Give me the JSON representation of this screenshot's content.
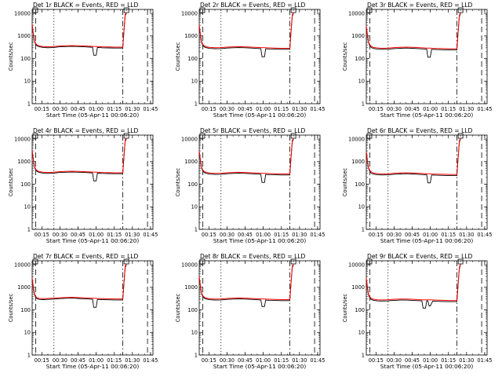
{
  "figure": {
    "xlabel": "Start Time (05-Apr-11 00:06:20)",
    "ylabel": "Counts/sec"
  },
  "chart_data": {
    "type": "line",
    "y_scale": "log",
    "ylim": [
      1,
      15000
    ],
    "xlim": [
      "00:07:00",
      "01:47:00"
    ],
    "x_ticks": [
      "00:15",
      "00:30",
      "00:45",
      "01:00",
      "01:15",
      "01:30",
      "01:45"
    ],
    "y_ticks": [
      "1",
      "10",
      "100",
      "1000",
      "10000"
    ],
    "series_colors": {
      "events": "#000000",
      "lld": "#ff0000"
    },
    "panels": [
      {
        "title": "Det 1r BLACK = Events, RED = LLD",
        "x": [
          "00:07:00",
          "00:08:00",
          "00:09:00",
          "00:10:00",
          "00:11:00",
          "00:13:00",
          "00:16:00",
          "00:20:00",
          "00:25:00",
          "00:30:00",
          "00:35:00",
          "00:40:00",
          "00:45:00",
          "00:50:00",
          "00:55:00",
          "00:57:00",
          "00:58:00",
          "01:00:00",
          "01:01:00",
          "01:05:00",
          "01:10:00",
          "01:15:00",
          "01:20:00",
          "01:22:00",
          "01:23:00",
          "01:24:00",
          "01:25:00"
        ],
        "events": [
          3000,
          1200,
          550,
          420,
          370,
          330,
          310,
          300,
          310,
          330,
          340,
          345,
          340,
          330,
          320,
          315,
          140,
          140,
          310,
          300,
          295,
          290,
          290,
          290,
          1500,
          8000,
          10000
        ],
        "lld": [
          3200,
          1300,
          600,
          460,
          400,
          360,
          340,
          330,
          340,
          360,
          370,
          375,
          370,
          360,
          350,
          345,
          345,
          345,
          340,
          330,
          325,
          320,
          320,
          320,
          1700,
          9000,
          11000
        ]
      },
      {
        "title": "Det 2r BLACK = Events, RED = LLD",
        "x": [
          "00:07:00",
          "00:08:00",
          "00:09:00",
          "00:10:00",
          "00:11:00",
          "00:13:00",
          "00:16:00",
          "00:20:00",
          "00:25:00",
          "00:30:00",
          "00:35:00",
          "00:40:00",
          "00:45:00",
          "00:50:00",
          "00:55:00",
          "00:58:00",
          "00:59:00",
          "01:01:00",
          "01:02:00",
          "01:05:00",
          "01:10:00",
          "01:15:00",
          "01:20:00",
          "01:22:00",
          "01:23:00",
          "01:24:00",
          "01:25:00"
        ],
        "events": [
          2800,
          1100,
          500,
          380,
          330,
          300,
          280,
          270,
          275,
          290,
          300,
          305,
          300,
          290,
          280,
          275,
          120,
          120,
          270,
          265,
          260,
          255,
          255,
          255,
          1400,
          7500,
          10000
        ],
        "lld": [
          3000,
          1200,
          560,
          420,
          370,
          330,
          310,
          300,
          305,
          320,
          330,
          335,
          330,
          320,
          310,
          305,
          305,
          305,
          300,
          295,
          290,
          285,
          285,
          285,
          1600,
          8500,
          11000
        ]
      },
      {
        "title": "Det 3r BLACK = Events, RED = LLD",
        "x": [
          "00:07:00",
          "00:08:00",
          "00:09:00",
          "00:10:00",
          "00:11:00",
          "00:13:00",
          "00:16:00",
          "00:20:00",
          "00:25:00",
          "00:30:00",
          "00:35:00",
          "00:40:00",
          "00:45:00",
          "00:50:00",
          "00:55:00",
          "00:57:00",
          "00:58:00",
          "01:00:00",
          "01:01:00",
          "01:05:00",
          "01:10:00",
          "01:15:00",
          "01:20:00",
          "01:22:00",
          "01:23:00",
          "01:24:00",
          "01:25:00"
        ],
        "events": [
          2600,
          1000,
          480,
          360,
          310,
          280,
          265,
          255,
          260,
          275,
          285,
          290,
          285,
          275,
          265,
          260,
          115,
          115,
          255,
          250,
          245,
          240,
          240,
          240,
          1300,
          7000,
          10000
        ],
        "lld": [
          2800,
          1100,
          530,
          400,
          350,
          310,
          295,
          285,
          290,
          305,
          315,
          320,
          315,
          305,
          295,
          290,
          290,
          290,
          285,
          280,
          275,
          270,
          270,
          270,
          1500,
          8000,
          11000
        ]
      },
      {
        "title": "Det 4r BLACK = Events, RED = LLD",
        "x": [
          "00:07:00",
          "00:08:00",
          "00:09:00",
          "00:10:00",
          "00:11:00",
          "00:13:00",
          "00:16:00",
          "00:20:00",
          "00:25:00",
          "00:30:00",
          "00:35:00",
          "00:40:00",
          "00:45:00",
          "00:50:00",
          "00:55:00",
          "00:57:00",
          "00:58:00",
          "01:00:00",
          "01:01:00",
          "01:05:00",
          "01:10:00",
          "01:15:00",
          "01:20:00",
          "01:22:00",
          "01:23:00",
          "01:24:00",
          "01:25:00"
        ],
        "events": [
          3000,
          1200,
          550,
          420,
          370,
          330,
          310,
          300,
          310,
          330,
          340,
          345,
          340,
          330,
          320,
          315,
          140,
          140,
          310,
          300,
          295,
          290,
          290,
          290,
          1500,
          8000,
          10000
        ],
        "lld": [
          3200,
          1300,
          600,
          460,
          400,
          360,
          340,
          330,
          340,
          360,
          370,
          375,
          370,
          360,
          350,
          345,
          345,
          345,
          340,
          330,
          325,
          320,
          320,
          320,
          1700,
          9000,
          11000
        ]
      },
      {
        "title": "Det 5r BLACK = Events, RED = LLD",
        "x": [
          "00:07:00",
          "00:08:00",
          "00:09:00",
          "00:10:00",
          "00:11:00",
          "00:13:00",
          "00:16:00",
          "00:20:00",
          "00:25:00",
          "00:30:00",
          "00:35:00",
          "00:40:00",
          "00:45:00",
          "00:50:00",
          "00:55:00",
          "00:58:00",
          "00:59:00",
          "01:01:00",
          "01:02:00",
          "01:05:00",
          "01:10:00",
          "01:15:00",
          "01:20:00",
          "01:22:00",
          "01:23:00",
          "01:24:00",
          "01:25:00"
        ],
        "events": [
          2800,
          1100,
          500,
          380,
          330,
          300,
          280,
          270,
          275,
          290,
          300,
          305,
          300,
          290,
          280,
          275,
          120,
          120,
          270,
          265,
          260,
          255,
          255,
          255,
          1400,
          7500,
          10000
        ],
        "lld": [
          3000,
          1200,
          560,
          420,
          370,
          330,
          310,
          300,
          305,
          320,
          330,
          335,
          330,
          320,
          310,
          305,
          305,
          305,
          300,
          295,
          290,
          285,
          285,
          285,
          1600,
          8500,
          11000
        ]
      },
      {
        "title": "Det 6r BLACK = Events, RED = LLD",
        "x": [
          "00:07:00",
          "00:08:00",
          "00:09:00",
          "00:10:00",
          "00:11:00",
          "00:13:00",
          "00:16:00",
          "00:20:00",
          "00:25:00",
          "00:30:00",
          "00:35:00",
          "00:40:00",
          "00:45:00",
          "00:50:00",
          "00:55:00",
          "00:57:00",
          "00:58:00",
          "01:00:00",
          "01:01:00",
          "01:05:00",
          "01:10:00",
          "01:15:00",
          "01:20:00",
          "01:22:00",
          "01:23:00",
          "01:24:00",
          "01:25:00"
        ],
        "events": [
          2600,
          1000,
          480,
          360,
          310,
          280,
          265,
          255,
          260,
          275,
          285,
          290,
          285,
          275,
          265,
          260,
          115,
          115,
          255,
          250,
          245,
          240,
          240,
          240,
          1300,
          7000,
          10000
        ],
        "lld": [
          2800,
          1100,
          530,
          400,
          350,
          310,
          295,
          285,
          290,
          305,
          315,
          320,
          315,
          305,
          295,
          290,
          290,
          290,
          285,
          280,
          275,
          270,
          270,
          270,
          1500,
          8000,
          11000
        ]
      },
      {
        "title": "Det 7r BLACK = Events, RED = LLD",
        "x": [
          "00:07:00",
          "00:08:00",
          "00:09:00",
          "00:10:00",
          "00:11:00",
          "00:13:00",
          "00:16:00",
          "00:20:00",
          "00:25:00",
          "00:30:00",
          "00:35:00",
          "00:40:00",
          "00:45:00",
          "00:50:00",
          "00:55:00",
          "00:57:00",
          "00:58:00",
          "01:00:00",
          "01:01:00",
          "01:05:00",
          "01:10:00",
          "01:15:00",
          "01:20:00",
          "01:22:00",
          "01:23:00",
          "01:24:00",
          "01:25:00"
        ],
        "events": [
          2400,
          950,
          460,
          350,
          310,
          290,
          285,
          290,
          300,
          315,
          325,
          330,
          320,
          310,
          300,
          295,
          130,
          130,
          290,
          285,
          280,
          275,
          275,
          275,
          1400,
          7500,
          10000
        ],
        "lld": [
          2600,
          1050,
          510,
          390,
          345,
          320,
          315,
          320,
          330,
          345,
          355,
          360,
          350,
          340,
          330,
          325,
          325,
          325,
          320,
          315,
          310,
          305,
          305,
          305,
          1600,
          8500,
          11000
        ]
      },
      {
        "title": "Det 8r BLACK = Events, RED = LLD",
        "x": [
          "00:07:00",
          "00:08:00",
          "00:09:00",
          "00:10:00",
          "00:11:00",
          "00:13:00",
          "00:16:00",
          "00:20:00",
          "00:25:00",
          "00:30:00",
          "00:35:00",
          "00:40:00",
          "00:45:00",
          "00:50:00",
          "00:55:00",
          "00:58:00",
          "00:59:00",
          "01:01:00",
          "01:02:00",
          "01:05:00",
          "01:10:00",
          "01:15:00",
          "01:20:00",
          "01:22:00",
          "01:23:00",
          "01:24:00",
          "01:25:00"
        ],
        "events": [
          2800,
          1100,
          500,
          380,
          330,
          300,
          280,
          270,
          275,
          290,
          300,
          305,
          300,
          290,
          280,
          275,
          140,
          140,
          270,
          265,
          260,
          255,
          255,
          255,
          1400,
          7500,
          10000
        ],
        "lld": [
          3000,
          1200,
          560,
          420,
          370,
          330,
          310,
          300,
          305,
          320,
          330,
          335,
          330,
          320,
          310,
          305,
          305,
          305,
          300,
          295,
          290,
          285,
          285,
          285,
          1600,
          8500,
          11000
        ]
      },
      {
        "title": "Det 9r BLACK = Events, RED = LLD",
        "x": [
          "00:07:00",
          "00:08:00",
          "00:09:00",
          "00:10:00",
          "00:11:00",
          "00:13:00",
          "00:16:00",
          "00:20:00",
          "00:25:00",
          "00:30:00",
          "00:35:00",
          "00:40:00",
          "00:45:00",
          "00:50:00",
          "00:53:00",
          "00:54:00",
          "00:56:00",
          "00:57:00",
          "00:58:00",
          "00:59:00",
          "01:00:00",
          "01:02:00",
          "01:05:00",
          "01:10:00",
          "01:15:00",
          "01:20:00",
          "01:22:00",
          "01:23:00",
          "01:24:00",
          "01:25:00"
        ],
        "events": [
          2400,
          900,
          420,
          330,
          290,
          265,
          250,
          245,
          250,
          265,
          270,
          270,
          265,
          255,
          250,
          120,
          120,
          250,
          250,
          150,
          150,
          245,
          240,
          235,
          230,
          230,
          230,
          1200,
          6500,
          10000
        ],
        "lld": [
          2600,
          1000,
          470,
          370,
          325,
          295,
          280,
          275,
          280,
          295,
          300,
          300,
          295,
          285,
          280,
          280,
          280,
          280,
          280,
          280,
          280,
          275,
          270,
          265,
          260,
          260,
          260,
          1400,
          7500,
          11000
        ]
      }
    ],
    "markers": {
      "dashed": [
        "00:10:00",
        "01:42:30"
      ],
      "dash_dot": [
        "01:22:00"
      ],
      "dotted": [
        "00:25:00"
      ]
    }
  }
}
